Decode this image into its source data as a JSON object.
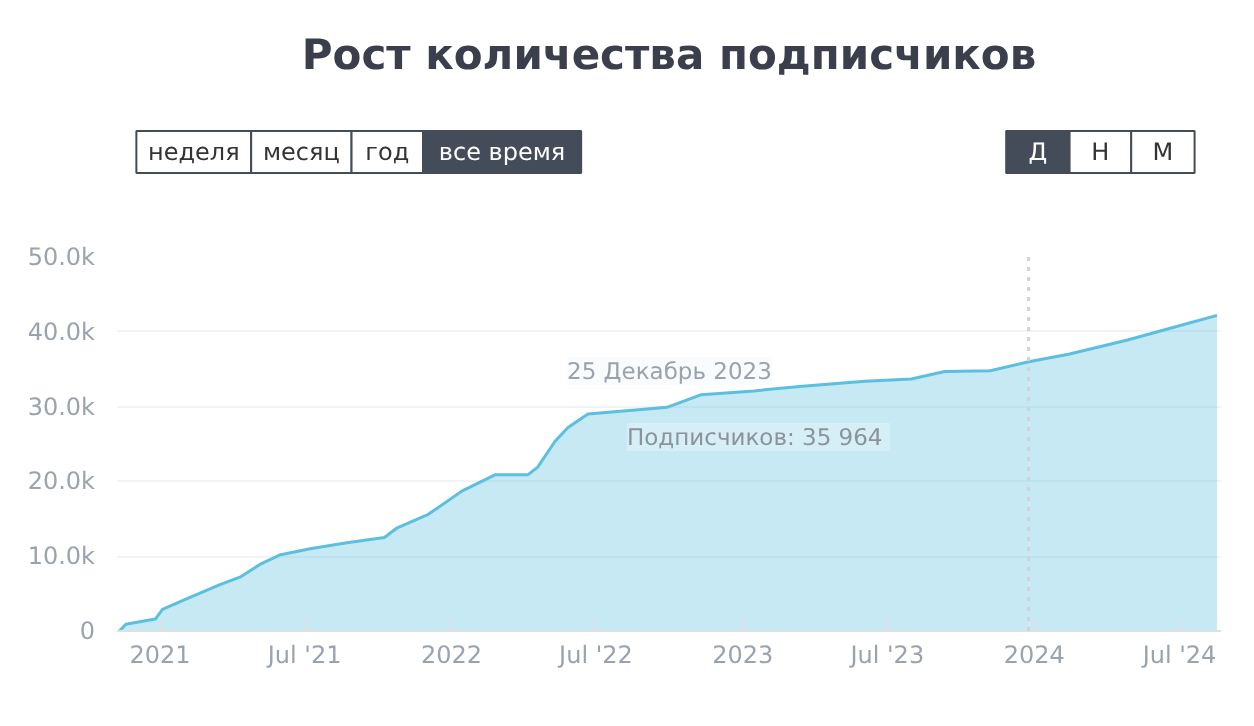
{
  "chart_data": {
    "type": "area",
    "title": "Рост количества подписчиков",
    "x": [
      "2020-11-11",
      "2020-11-19",
      "2020-12-26",
      "2021-01-04",
      "2021-02-03",
      "2021-03-17",
      "2021-04-11",
      "2021-05-06",
      "2021-06-01",
      "2021-07-08",
      "2021-08-23",
      "2021-10-09",
      "2021-10-25",
      "2021-12-03",
      "2022-01-14",
      "2022-02-25",
      "2022-04-07",
      "2022-04-19",
      "2022-05-11",
      "2022-05-27",
      "2022-06-21",
      "2022-08-27",
      "2022-09-28",
      "2022-11-10",
      "2023-01-15",
      "2023-03-13",
      "2023-06-03",
      "2023-07-31",
      "2023-09-11",
      "2023-11-07",
      "2023-12-25",
      "2024-02-13",
      "2024-04-27",
      "2024-06-24",
      "2024-08-17"
    ],
    "series": [
      {
        "color": "#5bbfdf",
        "values": [
          0,
          900,
          1600,
          2900,
          4300,
          6200,
          7200,
          8900,
          10200,
          11000,
          11800,
          12500,
          13800,
          15600,
          18700,
          20900,
          20900,
          21900,
          25400,
          27200,
          29000,
          29600,
          29900,
          31600,
          32100,
          32700,
          33400,
          33700,
          34700,
          34800,
          36000,
          37000,
          38900,
          40600,
          42200
        ]
      }
    ],
    "xlim": [
      "2020-11-08",
      "2024-08-22"
    ],
    "xticks": [
      {
        "value": "2021-01-01",
        "label": "2021"
      },
      {
        "value": "2021-07-01",
        "label": "Jul '21"
      },
      {
        "value": "2022-01-01",
        "label": "2022"
      },
      {
        "value": "2022-07-01",
        "label": "Jul '22"
      },
      {
        "value": "2023-01-01",
        "label": "2023"
      },
      {
        "value": "2023-07-01",
        "label": "Jul '23"
      },
      {
        "value": "2024-01-01",
        "label": "2024"
      },
      {
        "value": "2024-07-01",
        "label": "Jul '24"
      }
    ],
    "ylim": [
      0,
      50000
    ],
    "yticks": [
      0,
      {
        "value": 10000,
        "label": "10.0k"
      },
      {
        "value": 20000,
        "label": "20.0k"
      },
      {
        "value": 30000,
        "label": "30.0k"
      },
      {
        "value": 40000,
        "label": "40.0k"
      },
      {
        "value": 50000,
        "label": "50.0k"
      }
    ],
    "grid": "y",
    "ref_lines": [
      {
        "axis": "x",
        "value": "2023-12-25",
        "color": "#d0d4d8",
        "line_style": "dotted"
      }
    ],
    "annotations": [
      "25 Декабрь 2023",
      "Подписчиков:  35 964",
      "неделя",
      "месяц",
      "год",
      "все время",
      "Д",
      "Н",
      "М"
    ]
  }
}
